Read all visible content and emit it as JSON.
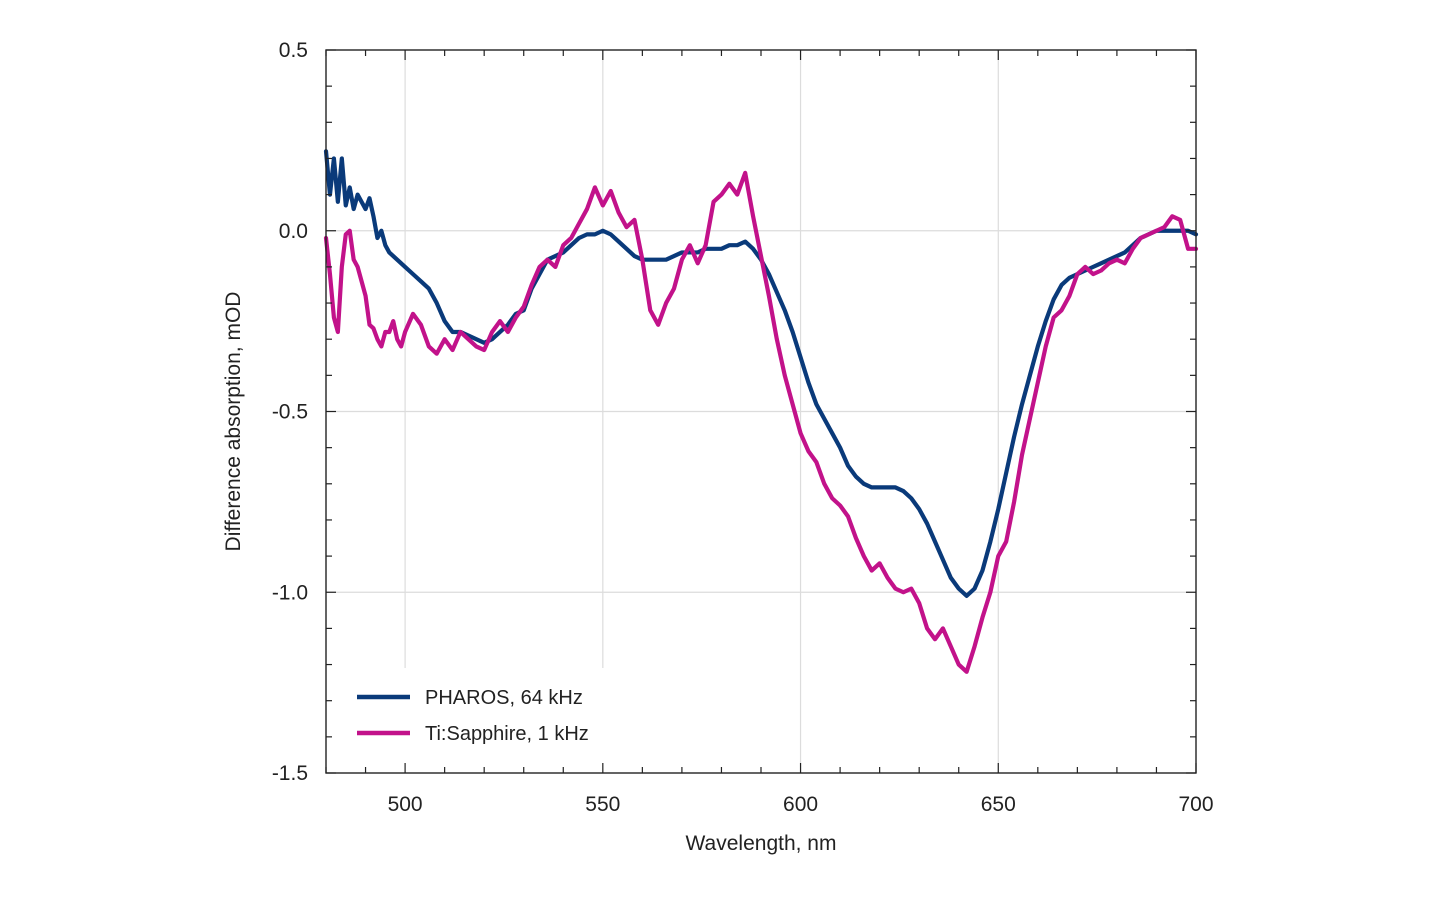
{
  "chart_data": {
    "type": "line",
    "title": "",
    "xlabel": "Wavelength, nm",
    "ylabel": "Difference absorption, mOD",
    "xlim": [
      480,
      700
    ],
    "ylim": [
      -1.5,
      0.5
    ],
    "x_ticks": [
      500,
      550,
      600,
      650,
      700
    ],
    "x_tick_labels": [
      "500",
      "550",
      "600",
      "650",
      "700"
    ],
    "y_ticks": [
      0.5,
      0.0,
      -0.5,
      -1.0,
      -1.5
    ],
    "y_tick_labels": [
      "0.5",
      "0.0",
      "-0.5",
      "-1.0",
      "-1.5"
    ],
    "grid": true,
    "legend_position": "bottom-left",
    "series": [
      {
        "name": "PHAROS, 64 kHz",
        "color": "#0a3a7a",
        "x": [
          480,
          481,
          482,
          483,
          484,
          485,
          486,
          487,
          488,
          489,
          490,
          491,
          492,
          493,
          494,
          495,
          496,
          497,
          498,
          499,
          500,
          502,
          504,
          506,
          508,
          510,
          512,
          514,
          516,
          518,
          520,
          522,
          524,
          526,
          528,
          530,
          532,
          534,
          536,
          538,
          540,
          542,
          544,
          546,
          548,
          550,
          552,
          554,
          556,
          558,
          560,
          562,
          564,
          566,
          568,
          570,
          572,
          574,
          576,
          578,
          580,
          582,
          584,
          586,
          588,
          590,
          592,
          594,
          596,
          598,
          600,
          602,
          604,
          606,
          608,
          610,
          612,
          614,
          616,
          618,
          620,
          622,
          624,
          626,
          628,
          630,
          632,
          634,
          636,
          638,
          640,
          642,
          644,
          646,
          648,
          650,
          652,
          654,
          656,
          658,
          660,
          662,
          664,
          666,
          668,
          670,
          672,
          674,
          676,
          678,
          680,
          682,
          684,
          686,
          688,
          690,
          692,
          694,
          696,
          698,
          700
        ],
        "y": [
          0.22,
          0.1,
          0.2,
          0.08,
          0.2,
          0.07,
          0.12,
          0.06,
          0.1,
          0.08,
          0.06,
          0.09,
          0.04,
          -0.02,
          0.0,
          -0.04,
          -0.06,
          -0.07,
          -0.08,
          -0.09,
          -0.1,
          -0.12,
          -0.14,
          -0.16,
          -0.2,
          -0.25,
          -0.28,
          -0.28,
          -0.29,
          -0.3,
          -0.31,
          -0.3,
          -0.28,
          -0.26,
          -0.23,
          -0.22,
          -0.16,
          -0.12,
          -0.08,
          -0.07,
          -0.06,
          -0.04,
          -0.02,
          -0.01,
          -0.01,
          0.0,
          -0.01,
          -0.03,
          -0.05,
          -0.07,
          -0.08,
          -0.08,
          -0.08,
          -0.08,
          -0.07,
          -0.06,
          -0.06,
          -0.06,
          -0.05,
          -0.05,
          -0.05,
          -0.04,
          -0.04,
          -0.03,
          -0.05,
          -0.08,
          -0.12,
          -0.17,
          -0.22,
          -0.28,
          -0.35,
          -0.42,
          -0.48,
          -0.52,
          -0.56,
          -0.6,
          -0.65,
          -0.68,
          -0.7,
          -0.71,
          -0.71,
          -0.71,
          -0.71,
          -0.72,
          -0.74,
          -0.77,
          -0.81,
          -0.86,
          -0.91,
          -0.96,
          -0.99,
          -1.01,
          -0.99,
          -0.94,
          -0.86,
          -0.77,
          -0.67,
          -0.57,
          -0.48,
          -0.4,
          -0.32,
          -0.25,
          -0.19,
          -0.15,
          -0.13,
          -0.12,
          -0.11,
          -0.1,
          -0.09,
          -0.08,
          -0.07,
          -0.06,
          -0.04,
          -0.02,
          -0.01,
          0.0,
          0.0,
          0.0,
          0.0,
          0.0,
          -0.01
        ]
      },
      {
        "name": "Ti:Sapphire, 1 kHz",
        "color": "#c2128a",
        "x": [
          480,
          481,
          482,
          483,
          484,
          485,
          486,
          487,
          488,
          489,
          490,
          491,
          492,
          493,
          494,
          495,
          496,
          497,
          498,
          499,
          500,
          502,
          504,
          506,
          508,
          510,
          512,
          514,
          516,
          518,
          520,
          522,
          524,
          526,
          528,
          530,
          532,
          534,
          536,
          538,
          540,
          542,
          544,
          546,
          548,
          550,
          552,
          554,
          556,
          558,
          560,
          562,
          564,
          566,
          568,
          570,
          572,
          574,
          576,
          578,
          580,
          582,
          584,
          586,
          588,
          590,
          592,
          594,
          596,
          598,
          600,
          602,
          604,
          606,
          608,
          610,
          612,
          614,
          616,
          618,
          620,
          622,
          624,
          626,
          628,
          630,
          632,
          634,
          636,
          638,
          640,
          642,
          644,
          646,
          648,
          650,
          652,
          654,
          656,
          658,
          660,
          662,
          664,
          666,
          668,
          670,
          672,
          674,
          676,
          678,
          680,
          682,
          684,
          686,
          688,
          690,
          692,
          694,
          696,
          698,
          700
        ],
        "y": [
          -0.02,
          -0.12,
          -0.24,
          -0.28,
          -0.1,
          -0.01,
          0.0,
          -0.08,
          -0.1,
          -0.14,
          -0.18,
          -0.26,
          -0.27,
          -0.3,
          -0.32,
          -0.28,
          -0.28,
          -0.25,
          -0.3,
          -0.32,
          -0.28,
          -0.23,
          -0.26,
          -0.32,
          -0.34,
          -0.3,
          -0.33,
          -0.28,
          -0.3,
          -0.32,
          -0.33,
          -0.28,
          -0.25,
          -0.28,
          -0.24,
          -0.21,
          -0.15,
          -0.1,
          -0.08,
          -0.1,
          -0.04,
          -0.02,
          0.02,
          0.06,
          0.12,
          0.07,
          0.11,
          0.05,
          0.01,
          0.03,
          -0.08,
          -0.22,
          -0.26,
          -0.2,
          -0.16,
          -0.08,
          -0.04,
          -0.09,
          -0.04,
          0.08,
          0.1,
          0.13,
          0.1,
          0.16,
          0.04,
          -0.07,
          -0.18,
          -0.3,
          -0.4,
          -0.48,
          -0.56,
          -0.61,
          -0.64,
          -0.7,
          -0.74,
          -0.76,
          -0.79,
          -0.85,
          -0.9,
          -0.94,
          -0.92,
          -0.96,
          -0.99,
          -1.0,
          -0.99,
          -1.03,
          -1.1,
          -1.13,
          -1.1,
          -1.15,
          -1.2,
          -1.22,
          -1.15,
          -1.07,
          -1.0,
          -0.9,
          -0.86,
          -0.75,
          -0.62,
          -0.52,
          -0.42,
          -0.32,
          -0.24,
          -0.22,
          -0.18,
          -0.12,
          -0.1,
          -0.12,
          -0.11,
          -0.09,
          -0.08,
          -0.09,
          -0.05,
          -0.02,
          -0.01,
          0.0,
          0.01,
          0.04,
          0.03,
          -0.05,
          -0.05
        ]
      }
    ]
  }
}
